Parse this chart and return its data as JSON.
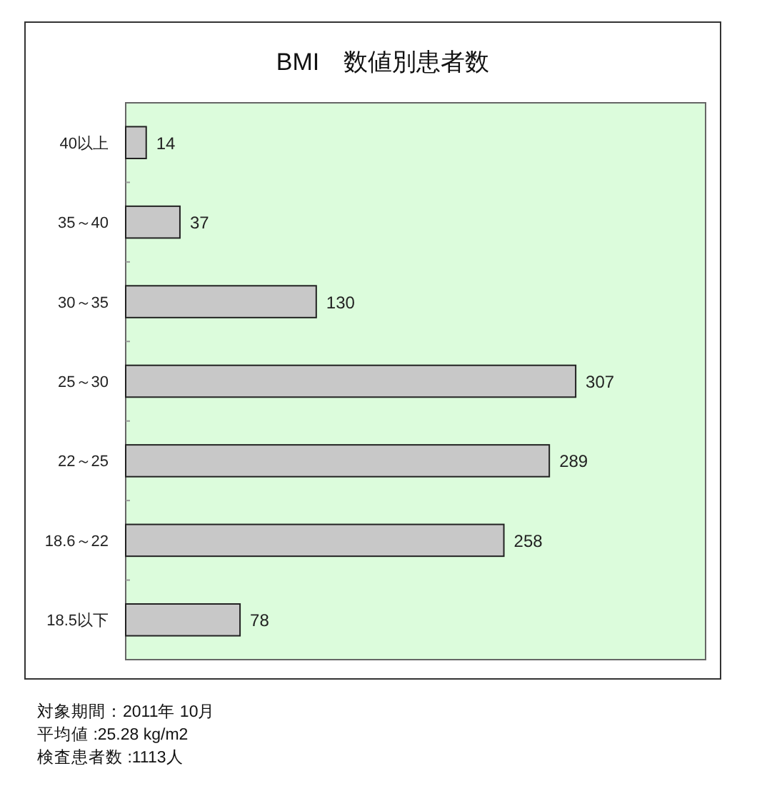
{
  "chart_data": {
    "type": "bar",
    "orientation": "horizontal",
    "title": "BMI　数値別患者数",
    "categories": [
      "40以上",
      "35～40",
      "30～35",
      "25～30",
      "22～25",
      "18.6～22",
      "18.5以下"
    ],
    "values": [
      14,
      37,
      130,
      307,
      289,
      258,
      78
    ],
    "color": "#c8c8c8",
    "data_labels": true,
    "relative": false,
    "annotations": [
      "対象期間：2011年 10月",
      "平均値 :25.28 kg/m2",
      "検査患者数 :1113人"
    ]
  }
}
